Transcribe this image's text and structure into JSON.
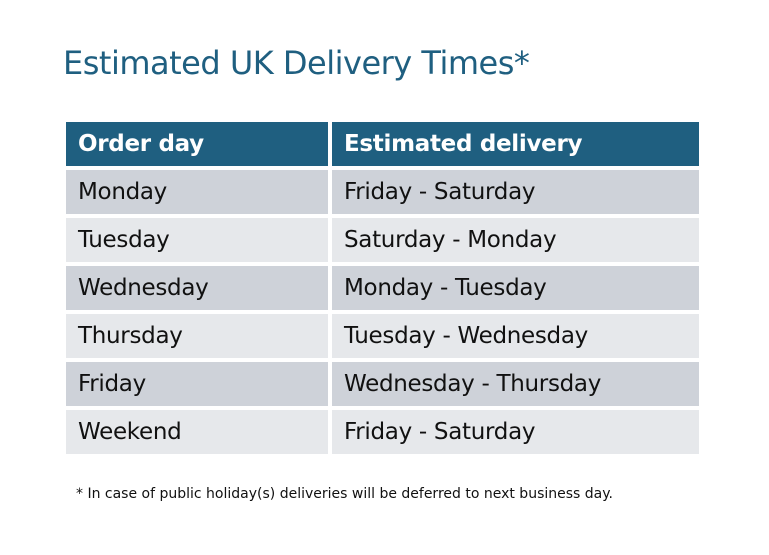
{
  "title": "Estimated UK Delivery Times*",
  "table": {
    "headers": [
      "Order day",
      "Estimated delivery"
    ],
    "rows": [
      [
        "Monday",
        "Friday - Saturday"
      ],
      [
        "Tuesday",
        "Saturday - Monday"
      ],
      [
        "Wednesday",
        "Monday - Tuesday"
      ],
      [
        "Thursday",
        "Tuesday - Wednesday"
      ],
      [
        "Friday",
        "Wednesday - Thursday"
      ],
      [
        "Weekend",
        "Friday - Saturday"
      ]
    ]
  },
  "footnote": "* In case of public holiday(s) deliveries will be deferred to next business day.",
  "colors": {
    "header": "#1f5f80",
    "row_dark": "#ced2d9",
    "row_light": "#e6e8eb"
  }
}
